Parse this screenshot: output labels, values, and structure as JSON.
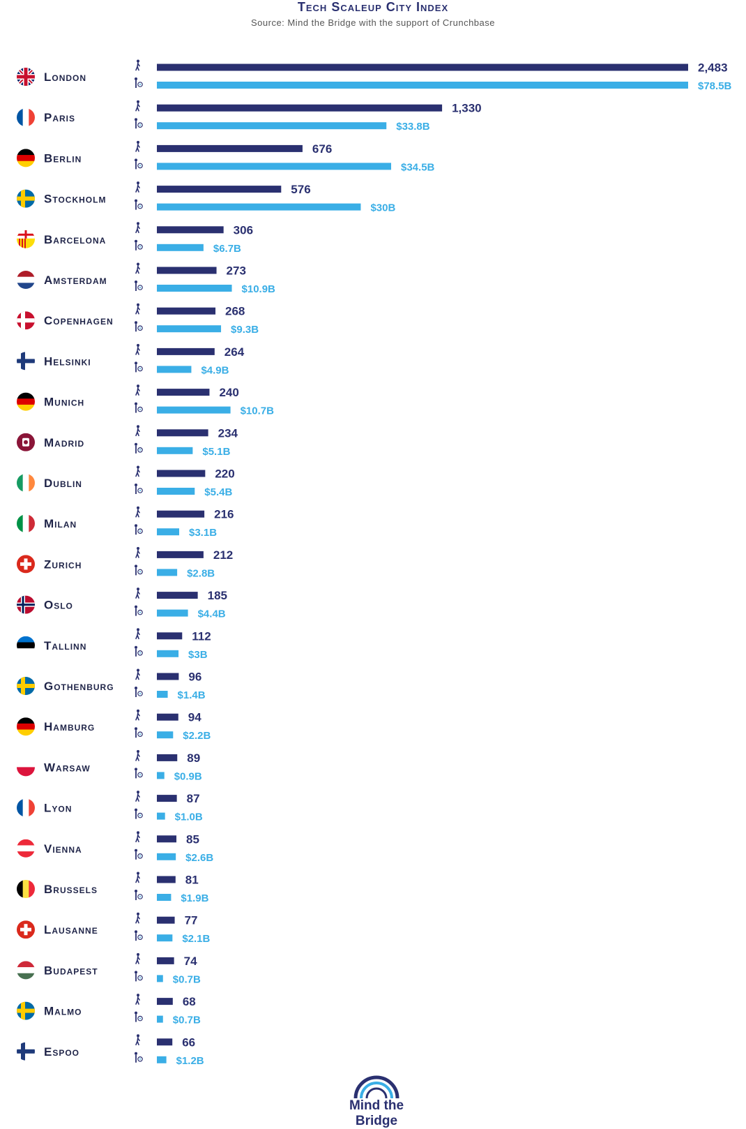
{
  "title": "Tech Scaleup City Index",
  "subtitle": "Source: Mind the Bridge with the support of Crunchbase",
  "logo_text": "Mind the Bridge",
  "colors": {
    "count_bar": "#2a3070",
    "funding_bar": "#3aaee6"
  },
  "chart_data": {
    "type": "bar",
    "orientation": "horizontal",
    "title": "Tech Scaleup City Index",
    "subtitle": "Source: Mind the Bridge with the support of Crunchbase",
    "categories": [
      "London",
      "Paris",
      "Berlin",
      "Stockholm",
      "Barcelona",
      "Amsterdam",
      "Copenhagen",
      "Helsinki",
      "Munich",
      "Madrid",
      "Dublin",
      "Milan",
      "Zurich",
      "Oslo",
      "Tallinn",
      "Gothenburg",
      "Hamburg",
      "Warsaw",
      "Lyon",
      "Vienna",
      "Brussels",
      "Lausanne",
      "Budapest",
      "Malmo",
      "Espoo"
    ],
    "flags": [
      "uk",
      "fr",
      "de",
      "se",
      "barcelona",
      "nl",
      "dk",
      "fi",
      "de",
      "madrid",
      "ie",
      "it",
      "ch",
      "no",
      "ee",
      "se",
      "de",
      "pl",
      "fr",
      "at",
      "be",
      "ch",
      "hu",
      "se",
      "fi"
    ],
    "series": [
      {
        "values": [
          2483,
          1330,
          676,
          576,
          306,
          273,
          268,
          264,
          240,
          234,
          220,
          216,
          212,
          185,
          112,
          96,
          94,
          89,
          87,
          85,
          81,
          77,
          74,
          68,
          66
        ],
        "labels": [
          "2,483",
          "1,330",
          "676",
          "576",
          "306",
          "273",
          "268",
          "264",
          "240",
          "234",
          "220",
          "216",
          "212",
          "185",
          "112",
          "96",
          "94",
          "89",
          "87",
          "85",
          "81",
          "77",
          "74",
          "68",
          "66"
        ]
      },
      {
        "values": [
          78.5,
          33.8,
          34.5,
          30,
          6.7,
          10.9,
          9.3,
          4.9,
          10.7,
          5.1,
          5.4,
          3.1,
          2.8,
          4.4,
          3,
          1.4,
          2.2,
          0.9,
          1.0,
          2.6,
          1.9,
          2.1,
          0.7,
          0.7,
          1.2
        ],
        "labels": [
          "$78.5B",
          "$33.8B",
          "$34.5B",
          "$30B",
          "$6.7B",
          "$10.9B",
          "$9.3B",
          "$4.9B",
          "$10.7B",
          "$5.1B",
          "$5.4B",
          "$3.1B",
          "$2.8B",
          "$4.4B",
          "$3B",
          "$1.4B",
          "$2.2B",
          "$0.9B",
          "$1.0B",
          "$2.6B",
          "$1.9B",
          "$2.1B",
          "$0.7B",
          "$0.7B",
          "$1.2B"
        ]
      }
    ],
    "grid": false,
    "legend": "none"
  }
}
